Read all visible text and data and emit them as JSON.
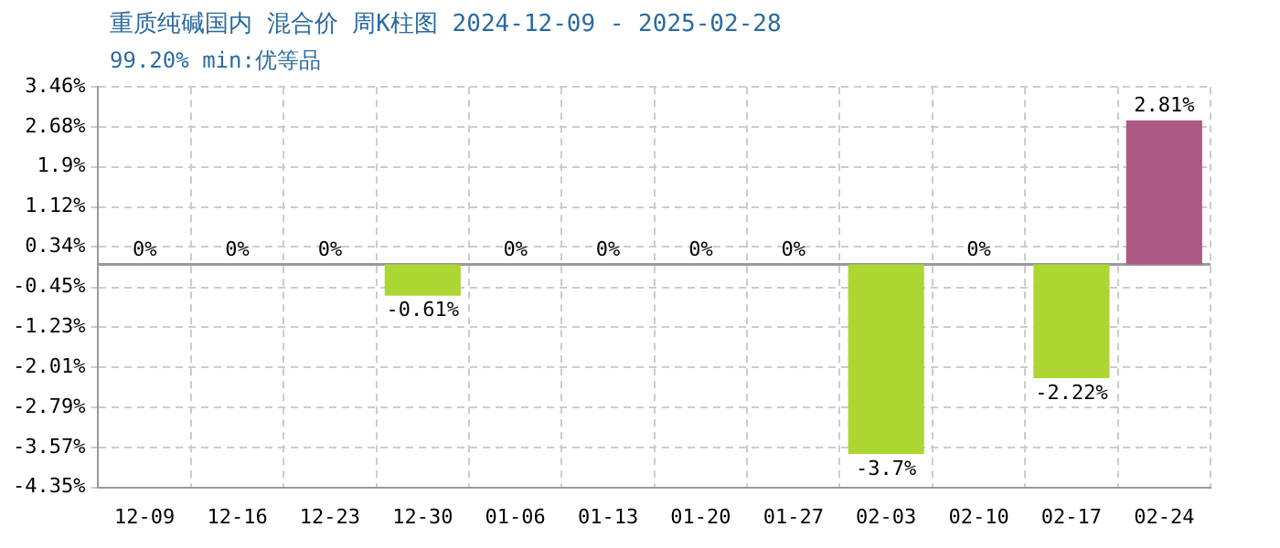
{
  "chart_data": {
    "type": "bar",
    "title": "重质纯碱国内 混合价 周K柱图 2024-12-09 - 2025-02-28",
    "subtitle": "99.20% min:优等品",
    "categories": [
      "12-09",
      "12-16",
      "12-23",
      "12-30",
      "01-06",
      "01-13",
      "01-20",
      "01-27",
      "02-03",
      "02-10",
      "02-17",
      "02-24"
    ],
    "values": [
      0,
      0,
      0,
      -0.61,
      0,
      0,
      0,
      0,
      -3.7,
      0,
      -2.22,
      2.81
    ],
    "colors": [
      "#ac5a84",
      "#ac5a84",
      "#ac5a84",
      "#acd632",
      "#ac5a84",
      "#ac5a84",
      "#ac5a84",
      "#ac5a84",
      "#acd632",
      "#ac5a84",
      "#acd632",
      "#ac5a84"
    ],
    "value_labels": [
      "0%",
      "0%",
      "0%",
      "-0.61%",
      "0%",
      "0%",
      "0%",
      "0%",
      "-3.7%",
      "0%",
      "-2.22%",
      "2.81%"
    ],
    "ylim": [
      -4.35,
      3.46
    ],
    "yticks": [
      {
        "value": 3.46,
        "label": "3.46%"
      },
      {
        "value": 2.68,
        "label": "2.68%"
      },
      {
        "value": 1.9,
        "label": "1.9%"
      },
      {
        "value": 1.12,
        "label": "1.12%"
      },
      {
        "value": 0.34,
        "label": "0.34%"
      },
      {
        "value": -0.45,
        "label": "-0.45%"
      },
      {
        "value": -1.23,
        "label": "-1.23%"
      },
      {
        "value": -2.01,
        "label": "-2.01%"
      },
      {
        "value": -2.79,
        "label": "-2.79%"
      },
      {
        "value": -3.57,
        "label": "-3.57%"
      },
      {
        "value": -4.35,
        "label": "-4.35%"
      }
    ],
    "ref_lines": [
      {
        "axis": "y",
        "value": 0,
        "color": "#999999"
      }
    ],
    "grid": true,
    "legend": false
  }
}
